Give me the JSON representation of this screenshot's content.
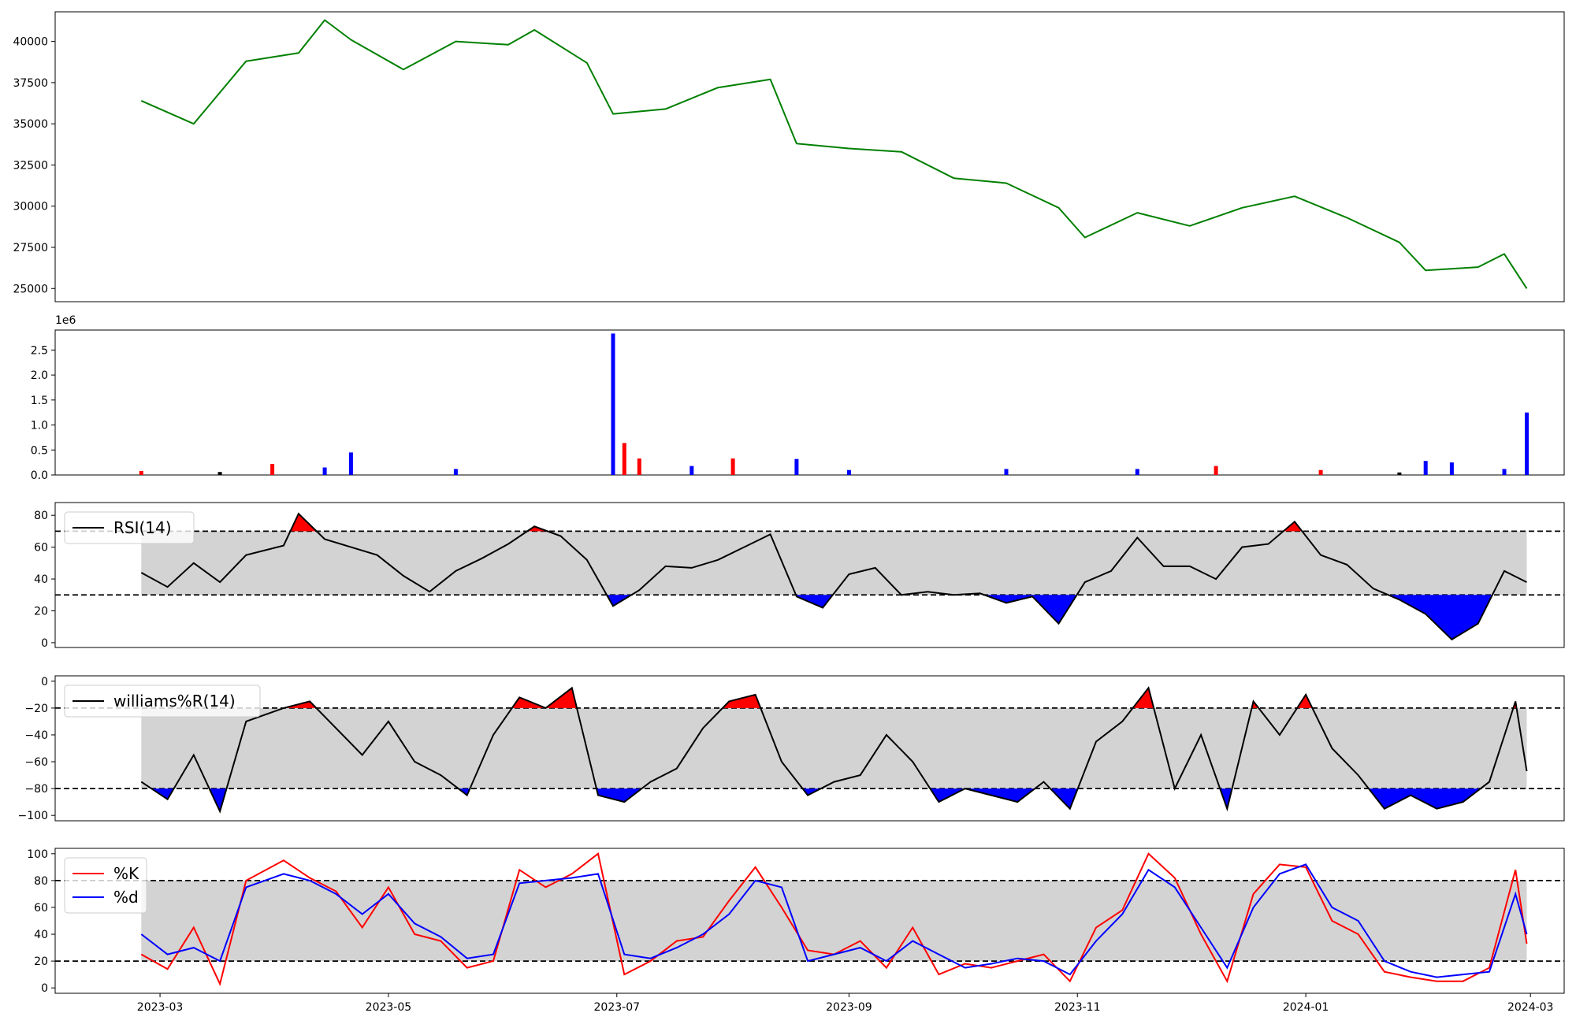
{
  "chart_data": [
    {
      "panel": "price",
      "type": "line",
      "ylim": [
        24200,
        41800
      ],
      "yticks": [
        "25000",
        "27500",
        "30000",
        "32500",
        "35000",
        "37500",
        "40000"
      ],
      "ytick_values": [
        25000,
        27500,
        30000,
        32500,
        35000,
        37500,
        40000
      ],
      "line_color": "#008000",
      "grid": false,
      "x": [
        "2023-02-24",
        "2023-03-10",
        "2023-03-24",
        "2023-04-07",
        "2023-04-14",
        "2023-04-21",
        "2023-05-05",
        "2023-05-19",
        "2023-06-02",
        "2023-06-09",
        "2023-06-23",
        "2023-06-30",
        "2023-07-14",
        "2023-07-28",
        "2023-08-11",
        "2023-08-18",
        "2023-09-01",
        "2023-09-15",
        "2023-09-29",
        "2023-10-13",
        "2023-10-27",
        "2023-11-03",
        "2023-11-17",
        "2023-12-01",
        "2023-12-15",
        "2023-12-29",
        "2024-01-12",
        "2024-01-26",
        "2024-02-02",
        "2024-02-16",
        "2024-02-23",
        "2024-02-29"
      ],
      "y": [
        36400,
        35000,
        38800,
        39300,
        41300,
        40100,
        38300,
        40000,
        39800,
        40700,
        38700,
        35600,
        35900,
        37200,
        37700,
        33800,
        33500,
        33300,
        31700,
        31400,
        29900,
        28100,
        29600,
        28800,
        29900,
        30600,
        29300,
        27800,
        26100,
        26300,
        27100,
        25000
      ]
    },
    {
      "panel": "volume",
      "type": "bar",
      "offset_text": "1e6",
      "ylim": [
        0,
        2.9
      ],
      "yticks": [
        "0.0",
        "0.5",
        "1.0",
        "1.5",
        "2.0",
        "2.5"
      ],
      "ytick_values": [
        0,
        0.5,
        1.0,
        1.5,
        2.0,
        2.5
      ],
      "colors": {
        "up": "#ff0000",
        "down": "#0000ff",
        "flat": "#000000"
      },
      "x": [
        "2023-02-24",
        "2023-03-17",
        "2023-03-31",
        "2023-04-14",
        "2023-04-21",
        "2023-05-19",
        "2023-06-30",
        "2023-07-03",
        "2023-07-07",
        "2023-07-21",
        "2023-08-01",
        "2023-08-18",
        "2023-09-01",
        "2023-10-13",
        "2023-11-17",
        "2023-12-08",
        "2024-01-05",
        "2024-01-26",
        "2024-02-02",
        "2024-02-09",
        "2024-02-23",
        "2024-02-29"
      ],
      "values": [
        0.08,
        0.06,
        0.22,
        0.15,
        0.45,
        0.12,
        2.83,
        0.64,
        0.33,
        0.18,
        0.33,
        0.32,
        0.1,
        0.12,
        0.12,
        0.18,
        0.1,
        0.05,
        0.28,
        0.25,
        0.12,
        1.25
      ],
      "bar_dir": [
        "up",
        "flat",
        "up",
        "down",
        "down",
        "down",
        "down",
        "up",
        "up",
        "down",
        "up",
        "down",
        "down",
        "down",
        "down",
        "up",
        "up",
        "flat",
        "down",
        "down",
        "down",
        "down"
      ]
    },
    {
      "panel": "rsi",
      "type": "line",
      "ylim": [
        -3,
        88
      ],
      "yticks": [
        "0",
        "20",
        "40",
        "60",
        "80"
      ],
      "ytick_values": [
        0,
        20,
        40,
        60,
        80
      ],
      "upper": 70,
      "lower": 30,
      "legend": [
        "RSI(14)"
      ],
      "legend_loc": "upper-left",
      "line_color": "#000000",
      "band_color": "#d3d3d3",
      "over_color": "#ff0000",
      "under_color": "#0000ff",
      "x": [
        "2023-02-24",
        "2023-03-03",
        "2023-03-10",
        "2023-03-17",
        "2023-03-24",
        "2023-04-03",
        "2023-04-07",
        "2023-04-14",
        "2023-04-21",
        "2023-04-28",
        "2023-05-05",
        "2023-05-12",
        "2023-05-19",
        "2023-05-26",
        "2023-06-02",
        "2023-06-09",
        "2023-06-16",
        "2023-06-23",
        "2023-06-30",
        "2023-07-07",
        "2023-07-14",
        "2023-07-21",
        "2023-07-28",
        "2023-08-04",
        "2023-08-11",
        "2023-08-18",
        "2023-08-25",
        "2023-09-01",
        "2023-09-08",
        "2023-09-15",
        "2023-09-22",
        "2023-09-29",
        "2023-10-06",
        "2023-10-13",
        "2023-10-20",
        "2023-10-27",
        "2023-11-03",
        "2023-11-10",
        "2023-11-17",
        "2023-11-24",
        "2023-12-01",
        "2023-12-08",
        "2023-12-15",
        "2023-12-22",
        "2023-12-29",
        "2024-01-05",
        "2024-01-12",
        "2024-01-19",
        "2024-01-26",
        "2024-02-02",
        "2024-02-09",
        "2024-02-16",
        "2024-02-23",
        "2024-02-29"
      ],
      "y": [
        44,
        35,
        50,
        38,
        55,
        61,
        81,
        65,
        60,
        55,
        42,
        32,
        45,
        53,
        62,
        73,
        67,
        52,
        23,
        33,
        48,
        47,
        52,
        60,
        68,
        29,
        22,
        43,
        47,
        30,
        32,
        30,
        31,
        25,
        29,
        12,
        38,
        45,
        66,
        48,
        48,
        40,
        60,
        62,
        76,
        55,
        49,
        34,
        27,
        18,
        2,
        12,
        45,
        38
      ]
    },
    {
      "panel": "williams",
      "type": "line",
      "ylim": [
        -104,
        4
      ],
      "yticks": [
        "−100",
        "−80",
        "−60",
        "−40",
        "−20",
        "0"
      ],
      "ytick_values": [
        -100,
        -80,
        -60,
        -40,
        -20,
        0
      ],
      "upper": -20,
      "lower": -80,
      "legend": [
        "williams%R(14)"
      ],
      "legend_loc": "upper-left",
      "line_color": "#000000",
      "band_color": "#d3d3d3",
      "over_color": "#ff0000",
      "under_color": "#0000ff",
      "x": [
        "2023-02-24",
        "2023-03-03",
        "2023-03-10",
        "2023-03-17",
        "2023-03-24",
        "2023-04-03",
        "2023-04-10",
        "2023-04-17",
        "2023-04-24",
        "2023-05-01",
        "2023-05-08",
        "2023-05-15",
        "2023-05-22",
        "2023-05-29",
        "2023-06-05",
        "2023-06-12",
        "2023-06-19",
        "2023-06-26",
        "2023-07-03",
        "2023-07-10",
        "2023-07-17",
        "2023-07-24",
        "2023-07-31",
        "2023-08-07",
        "2023-08-14",
        "2023-08-21",
        "2023-08-28",
        "2023-09-04",
        "2023-09-11",
        "2023-09-18",
        "2023-09-25",
        "2023-10-02",
        "2023-10-09",
        "2023-10-16",
        "2023-10-23",
        "2023-10-30",
        "2023-11-06",
        "2023-11-13",
        "2023-11-20",
        "2023-11-27",
        "2023-12-04",
        "2023-12-11",
        "2023-12-18",
        "2023-12-25",
        "2024-01-01",
        "2024-01-08",
        "2024-01-15",
        "2024-01-22",
        "2024-01-29",
        "2024-02-05",
        "2024-02-12",
        "2024-02-19",
        "2024-02-26",
        "2024-02-29"
      ],
      "y": [
        -75,
        -88,
        -55,
        -97,
        -30,
        -20,
        -15,
        -35,
        -55,
        -30,
        -60,
        -70,
        -85,
        -40,
        -12,
        -20,
        -5,
        -85,
        -90,
        -75,
        -65,
        -35,
        -15,
        -10,
        -60,
        -85,
        -75,
        -70,
        -40,
        -60,
        -90,
        -80,
        -85,
        -90,
        -75,
        -95,
        -45,
        -30,
        -5,
        -80,
        -40,
        -95,
        -15,
        -40,
        -10,
        -50,
        -70,
        -95,
        -85,
        -95,
        -90,
        -75,
        -15,
        -67
      ]
    },
    {
      "panel": "stochastic",
      "type": "line",
      "ylim": [
        -4,
        104
      ],
      "yticks": [
        "0",
        "20",
        "40",
        "60",
        "80",
        "100"
      ],
      "ytick_values": [
        0,
        20,
        40,
        60,
        80,
        100
      ],
      "upper": 80,
      "lower": 20,
      "legend": [
        "%K",
        "%d"
      ],
      "legend_loc": "upper-left",
      "band_color": "#d3d3d3",
      "xticks": [
        "2023-03",
        "2023-05",
        "2023-07",
        "2023-09",
        "2023-11",
        "2024-01",
        "2024-03"
      ],
      "x_domain": [
        "2023-02-01",
        "2024-03-10"
      ],
      "x": [
        "2023-02-24",
        "2023-03-03",
        "2023-03-10",
        "2023-03-17",
        "2023-03-24",
        "2023-04-03",
        "2023-04-10",
        "2023-04-17",
        "2023-04-24",
        "2023-05-01",
        "2023-05-08",
        "2023-05-15",
        "2023-05-22",
        "2023-05-29",
        "2023-06-05",
        "2023-06-12",
        "2023-06-19",
        "2023-06-26",
        "2023-07-03",
        "2023-07-10",
        "2023-07-17",
        "2023-07-24",
        "2023-07-31",
        "2023-08-07",
        "2023-08-14",
        "2023-08-21",
        "2023-08-28",
        "2023-09-04",
        "2023-09-11",
        "2023-09-18",
        "2023-09-25",
        "2023-10-02",
        "2023-10-09",
        "2023-10-16",
        "2023-10-23",
        "2023-10-30",
        "2023-11-06",
        "2023-11-13",
        "2023-11-20",
        "2023-11-27",
        "2023-12-04",
        "2023-12-11",
        "2023-12-18",
        "2023-12-25",
        "2024-01-01",
        "2024-01-08",
        "2024-01-15",
        "2024-01-22",
        "2024-01-29",
        "2024-02-05",
        "2024-02-12",
        "2024-02-19",
        "2024-02-26",
        "2024-02-29"
      ],
      "series": [
        {
          "name": "%K",
          "color": "#ff0000",
          "values": [
            25,
            14,
            45,
            3,
            80,
            95,
            82,
            72,
            45,
            75,
            40,
            35,
            15,
            20,
            88,
            75,
            85,
            100,
            10,
            20,
            35,
            38,
            65,
            90,
            60,
            28,
            25,
            35,
            15,
            45,
            10,
            18,
            15,
            20,
            25,
            5,
            45,
            58,
            100,
            82,
            40,
            5,
            70,
            92,
            90,
            50,
            40,
            12,
            8,
            5,
            5,
            15,
            88,
            33
          ]
        },
        {
          "name": "%d",
          "color": "#0000ff",
          "values": [
            40,
            25,
            30,
            20,
            75,
            85,
            80,
            70,
            55,
            70,
            48,
            38,
            22,
            25,
            78,
            80,
            82,
            85,
            25,
            22,
            30,
            40,
            55,
            80,
            75,
            20,
            25,
            30,
            20,
            35,
            25,
            15,
            18,
            22,
            20,
            10,
            35,
            55,
            88,
            75,
            45,
            15,
            60,
            85,
            92,
            60,
            50,
            20,
            12,
            8,
            10,
            12,
            70,
            40
          ]
        }
      ]
    }
  ]
}
